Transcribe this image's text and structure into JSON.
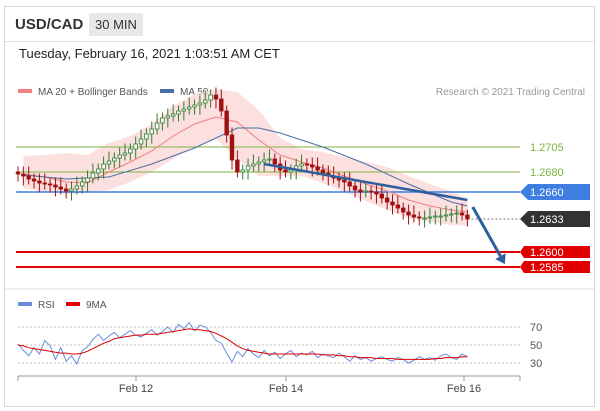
{
  "header": {
    "pair": "USD/CAD",
    "timeframe": "30 MIN"
  },
  "timestamp": "Tuesday, February 16, 2021 1:03:51 AM CET",
  "legend": {
    "ma20_bb": "MA 20 + Bollinger Bands",
    "ma50": "MA 50",
    "credit": "Research © 2021 Trading Central",
    "rsi": "RSI",
    "ma9": "9MA"
  },
  "colors": {
    "ma20": "#f08080",
    "ma50": "#4a6fa5",
    "band": "#f9d6d4",
    "green": "#7cb342",
    "blue": "#3d7ee0",
    "dark": "#333333",
    "red": "#e00000",
    "candle_up": "#2e7d32",
    "candle_down": "#a01010",
    "arrow": "#2f5f9e",
    "rsi": "#6a8fd8",
    "rsi_ma": "#e00000"
  },
  "chart_data": [
    {
      "type": "candlestick",
      "title": "USD/CAD",
      "timeframe": "30 MIN",
      "x_ticks": [
        "Feb 12",
        "Feb 14",
        "Feb 16"
      ],
      "ylim": [
        1.257,
        1.274
      ],
      "price_levels": [
        {
          "value": 1.2705,
          "label": "1.2705",
          "style": "green"
        },
        {
          "value": 1.268,
          "label": "1.2680",
          "style": "green"
        },
        {
          "value": 1.266,
          "label": "1.2660",
          "style": "blue"
        },
        {
          "value": 1.2633,
          "label": "1.2633",
          "style": "current"
        },
        {
          "value": 1.26,
          "label": "1.2600",
          "style": "red"
        },
        {
          "value": 1.2585,
          "label": "1.2585",
          "style": "red"
        }
      ],
      "close": [
        1.2678,
        1.2676,
        1.2673,
        1.2671,
        1.2669,
        1.2668,
        1.2667,
        1.2665,
        1.2663,
        1.2661,
        1.2663,
        1.2666,
        1.267,
        1.2674,
        1.2679,
        1.2683,
        1.2688,
        1.2691,
        1.2694,
        1.2697,
        1.2699,
        1.2703,
        1.2708,
        1.2713,
        1.2718,
        1.2723,
        1.2729,
        1.2734,
        1.2736,
        1.2738,
        1.2741,
        1.2743,
        1.2745,
        1.2747,
        1.2749,
        1.2752,
        1.2757,
        1.2753,
        1.2741,
        1.2717,
        1.2692,
        1.268,
        1.2682,
        1.2686,
        1.2688,
        1.269,
        1.2692,
        1.2693,
        1.2688,
        1.2682,
        1.268,
        1.2682,
        1.2686,
        1.2688,
        1.2687,
        1.2685,
        1.2682,
        1.2679,
        1.2676,
        1.2674,
        1.2672,
        1.267,
        1.2666,
        1.2662,
        1.266,
        1.2661,
        1.266,
        1.2658,
        1.2654,
        1.265,
        1.2647,
        1.2644,
        1.264,
        1.2637,
        1.2635,
        1.2634,
        1.2634,
        1.2635,
        1.2636,
        1.2636,
        1.2637,
        1.2638,
        1.2639,
        1.2637,
        1.2633
      ],
      "ma20_x": [
        1,
        5,
        9,
        13,
        17,
        21,
        25,
        29,
        33,
        37,
        41,
        45,
        49,
        53,
        57,
        61,
        65,
        69,
        73,
        77,
        81,
        84
      ],
      "ma20": [
        1.2678,
        1.2675,
        1.267,
        1.2669,
        1.268,
        1.269,
        1.2701,
        1.2716,
        1.2728,
        1.2735,
        1.273,
        1.2712,
        1.2697,
        1.269,
        1.2684,
        1.2676,
        1.2668,
        1.2661,
        1.2652,
        1.2646,
        1.2642,
        1.264
      ],
      "bb_upper": [
        1.2696,
        1.2697,
        1.2699,
        1.2697,
        1.2709,
        1.2716,
        1.2728,
        1.2746,
        1.2758,
        1.2763,
        1.276,
        1.2742,
        1.2714,
        1.2703,
        1.27,
        1.2695,
        1.269,
        1.2685,
        1.2676,
        1.2668,
        1.2661,
        1.2653
      ],
      "bb_lower": [
        1.2664,
        1.266,
        1.2658,
        1.2659,
        1.2662,
        1.267,
        1.268,
        1.2693,
        1.2705,
        1.2713,
        1.2693,
        1.2676,
        1.2676,
        1.2676,
        1.2669,
        1.266,
        1.2651,
        1.2642,
        1.2634,
        1.263,
        1.2627,
        1.2626
      ],
      "ma50_x": [
        1,
        9,
        17,
        25,
        33,
        41,
        45,
        49,
        57,
        65,
        73,
        81,
        84
      ],
      "ma50": [
        1.2677,
        1.2673,
        1.2675,
        1.2688,
        1.2704,
        1.2724,
        1.2724,
        1.2719,
        1.2705,
        1.2688,
        1.2668,
        1.265,
        1.2646
      ],
      "trendline": {
        "from": [
          46,
          1.2688
        ],
        "to": [
          84,
          1.2652
        ]
      },
      "arrow": {
        "from": [
          85,
          1.2645
        ],
        "to": [
          91,
          1.2588
        ]
      }
    },
    {
      "type": "line",
      "title": "RSI",
      "ylim": [
        20,
        80
      ],
      "y_ticks": [
        70,
        50,
        30
      ],
      "series": [
        {
          "name": "RSI",
          "values": [
            51,
            44,
            38,
            47,
            40,
            55,
            49,
            34,
            47,
            32,
            38,
            29,
            44,
            48,
            56,
            62,
            55,
            60,
            64,
            58,
            62,
            66,
            61,
            59,
            63,
            67,
            61,
            65,
            70,
            64,
            73,
            68,
            75,
            66,
            72,
            70,
            64,
            55,
            52,
            41,
            31,
            43,
            37,
            46,
            40,
            36,
            44,
            38,
            42,
            35,
            40,
            44,
            37,
            41,
            39,
            43,
            36,
            40,
            38,
            36,
            41,
            37,
            32,
            38,
            34,
            36,
            32,
            35,
            37,
            34,
            32,
            36,
            34,
            30,
            33,
            37,
            34,
            36,
            33,
            38,
            40,
            36,
            34,
            40,
            37
          ]
        },
        {
          "name": "9MA",
          "values": [
            50,
            49,
            47,
            46,
            45,
            44,
            43,
            42,
            41,
            41,
            40,
            40,
            41,
            43,
            46,
            49,
            52,
            54,
            57,
            58,
            59,
            60,
            61,
            61,
            62,
            62,
            62,
            63,
            64,
            65,
            66,
            67,
            68,
            67,
            67,
            66,
            65,
            63,
            60,
            57,
            53,
            49,
            46,
            44,
            43,
            42,
            41,
            40,
            40,
            40,
            40,
            40,
            40,
            40,
            40,
            40,
            40,
            39,
            39,
            39,
            38,
            38,
            37,
            37,
            36,
            36,
            36,
            35,
            35,
            35,
            35,
            34,
            34,
            34,
            34,
            34,
            34,
            34,
            35,
            35,
            36,
            36,
            36,
            37,
            37
          ]
        }
      ]
    }
  ]
}
